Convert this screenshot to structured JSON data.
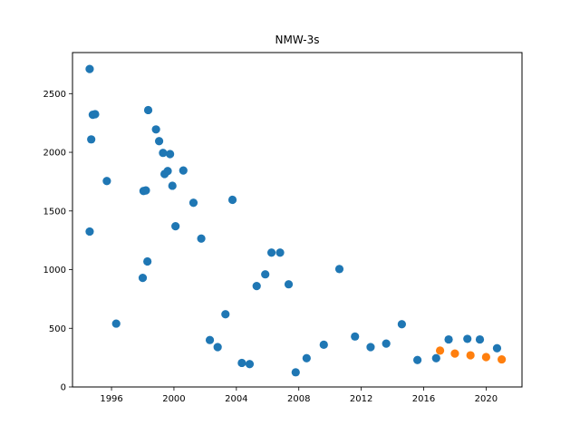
{
  "chart_data": {
    "type": "scatter",
    "title": "NMW-3s",
    "xlabel": "",
    "ylabel": "",
    "xlim": [
      1993.5,
      2022.3
    ],
    "ylim": [
      0,
      2850
    ],
    "xticks": [
      1996,
      2000,
      2004,
      2008,
      2012,
      2016,
      2020
    ],
    "xtick_labels": [
      "1996",
      "2000",
      "2004",
      "2008",
      "2012",
      "2016",
      "2020"
    ],
    "yticks": [
      0,
      500,
      1000,
      1500,
      2000,
      2500
    ],
    "ytick_labels": [
      "0",
      "500",
      "1000",
      "1500",
      "2000",
      "2500"
    ],
    "grid": false,
    "legend": "none",
    "series": [
      {
        "color": "#1f77b4",
        "points": [
          [
            1994.6,
            2710
          ],
          [
            1994.6,
            1325
          ],
          [
            1994.7,
            2110
          ],
          [
            1994.8,
            2320
          ],
          [
            1994.95,
            2325
          ],
          [
            1995.7,
            1755
          ],
          [
            1996.3,
            540
          ],
          [
            1998.0,
            930
          ],
          [
            1998.05,
            1670
          ],
          [
            1998.2,
            1675
          ],
          [
            1998.3,
            1070
          ],
          [
            1998.35,
            2360
          ],
          [
            1998.85,
            2195
          ],
          [
            1999.05,
            2095
          ],
          [
            1999.3,
            1995
          ],
          [
            1999.4,
            1815
          ],
          [
            1999.6,
            1840
          ],
          [
            1999.75,
            1985
          ],
          [
            1999.9,
            1715
          ],
          [
            2000.1,
            1370
          ],
          [
            2000.6,
            1845
          ],
          [
            2001.25,
            1570
          ],
          [
            2001.75,
            1265
          ],
          [
            2002.3,
            400
          ],
          [
            2002.8,
            340
          ],
          [
            2003.3,
            620
          ],
          [
            2003.75,
            1595
          ],
          [
            2004.35,
            205
          ],
          [
            2004.85,
            195
          ],
          [
            2005.3,
            860
          ],
          [
            2005.85,
            960
          ],
          [
            2006.25,
            1145
          ],
          [
            2006.8,
            1145
          ],
          [
            2007.35,
            875
          ],
          [
            2007.8,
            125
          ],
          [
            2008.5,
            245
          ],
          [
            2009.6,
            360
          ],
          [
            2010.6,
            1005
          ],
          [
            2011.6,
            430
          ],
          [
            2012.6,
            340
          ],
          [
            2013.6,
            370
          ],
          [
            2014.6,
            535
          ],
          [
            2015.6,
            230
          ],
          [
            2016.8,
            245
          ],
          [
            2017.6,
            405
          ],
          [
            2018.8,
            410
          ],
          [
            2019.6,
            405
          ],
          [
            2020.7,
            330
          ]
        ]
      },
      {
        "color": "#ff7f0e",
        "points": [
          [
            2017.05,
            310
          ],
          [
            2018.0,
            285
          ],
          [
            2019.0,
            270
          ],
          [
            2020.0,
            255
          ],
          [
            2021.0,
            235
          ]
        ]
      }
    ]
  }
}
